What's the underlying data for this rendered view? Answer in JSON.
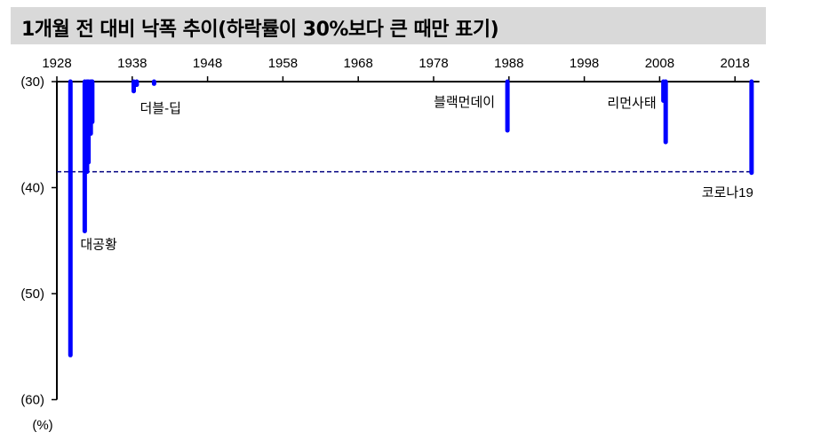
{
  "chart_data": {
    "type": "bar",
    "title": "1개월 전 대비 낙폭 추이(하락률이 30%보다 큰 때만 표기)",
    "ylabel": "(%)",
    "x_ticks": [
      "1928",
      "1938",
      "1948",
      "1958",
      "1968",
      "1978",
      "1988",
      "1998",
      "2008",
      "2018"
    ],
    "y_ticks": [
      {
        "value": -30,
        "label": "(30)"
      },
      {
        "value": -40,
        "label": "(40)"
      },
      {
        "value": -50,
        "label": "(50)"
      },
      {
        "value": -60,
        "label": "(60)"
      }
    ],
    "xlim": [
      1928,
      2021
    ],
    "ylim": [
      -60,
      -30
    ],
    "bar_color": "#0000ff",
    "reference_line": {
      "value": -38.5,
      "style": "dashed",
      "color": "#000080"
    },
    "points": [
      {
        "x": 1929.8,
        "y": -55.8
      },
      {
        "x": 1931.7,
        "y": -44.1
      },
      {
        "x": 1932.0,
        "y": -38.5
      },
      {
        "x": 1932.2,
        "y": -37.6
      },
      {
        "x": 1932.5,
        "y": -34.9
      },
      {
        "x": 1932.7,
        "y": -33.8
      },
      {
        "x": 1938.2,
        "y": -30.9
      },
      {
        "x": 1938.6,
        "y": -30.3
      },
      {
        "x": 1940.9,
        "y": -30.2
      },
      {
        "x": 1987.8,
        "y": -34.6
      },
      {
        "x": 2008.5,
        "y": -31.8
      },
      {
        "x": 2008.8,
        "y": -35.7
      },
      {
        "x": 2020.2,
        "y": -38.6
      }
    ],
    "annotations": [
      {
        "text": "대공황",
        "x": 1931.7,
        "y": -44.1
      },
      {
        "text": "더블-딥",
        "x": 1938.2,
        "y": -30.9
      },
      {
        "text": "블랙먼데이",
        "x": 1987.8,
        "y": -30
      },
      {
        "text": "리먼사태",
        "x": 2008.5,
        "y": -30
      },
      {
        "text": "코로나19",
        "x": 2020.2,
        "y": -38.6
      }
    ]
  }
}
